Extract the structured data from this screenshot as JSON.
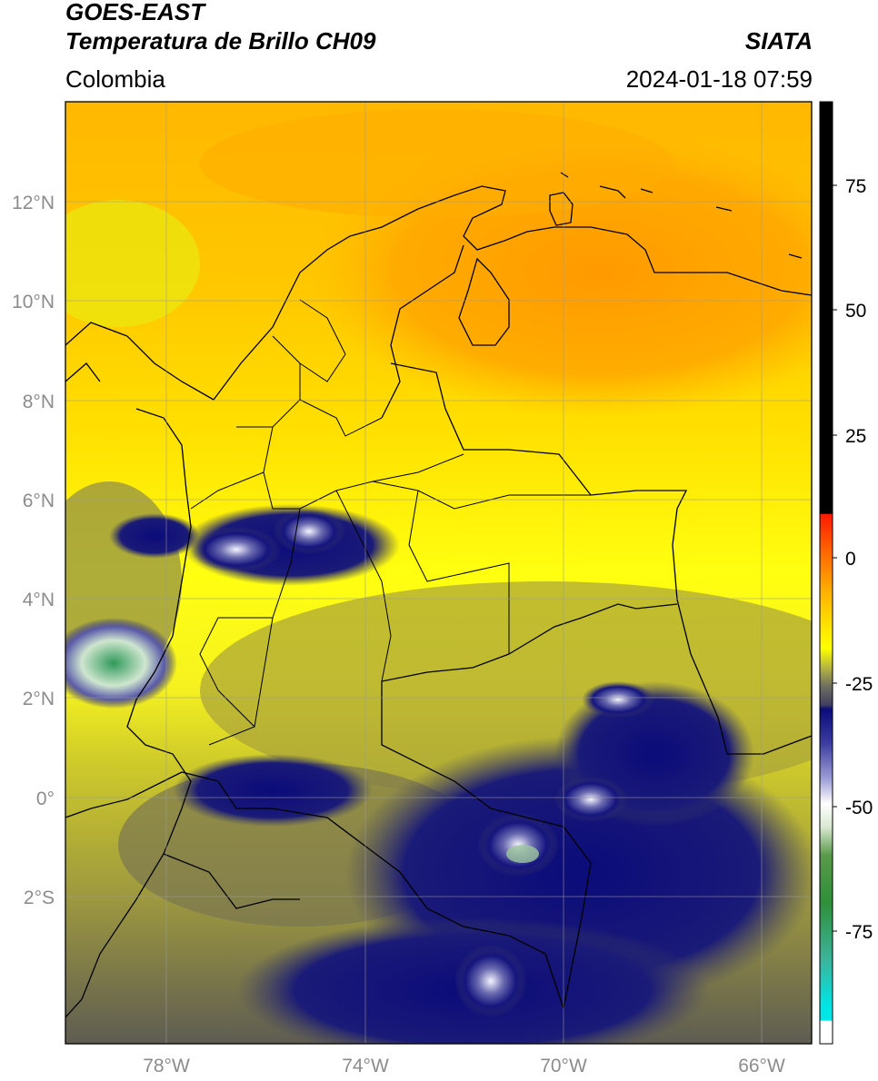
{
  "header": {
    "line1": "GOES-EAST",
    "line2": "Temperatura de Brillo CH09",
    "source": "SIATA",
    "region": "Colombia",
    "timestamp": "2024-01-18 07:59"
  },
  "map": {
    "lat_labels": [
      "12°N",
      "10°N",
      "8°N",
      "6°N",
      "4°N",
      "2°N",
      "0°",
      "2°S"
    ],
    "lon_labels": [
      "78°W",
      "74°W",
      "70°W",
      "66°W"
    ],
    "extent": {
      "lon_min": -80.0,
      "lon_max": -65.0,
      "lat_min": -5.0,
      "lat_max": 14.0
    },
    "gridlines": true
  },
  "colorbar": {
    "ticks": [
      "75",
      "50",
      "25",
      "0",
      "-25",
      "-50",
      "-75"
    ],
    "range": [
      -97,
      90
    ],
    "colors": {
      "hot": "#000000",
      "red": "#ff1a00",
      "orange": "#ff9a00",
      "yellow": "#ffff00",
      "olive": "#8a8a3a",
      "navy": "#0b0b7a",
      "white": "#ffffff",
      "green": "#2f8f3a",
      "teal": "#3cb39a",
      "cyan": "#00e5e5"
    }
  }
}
